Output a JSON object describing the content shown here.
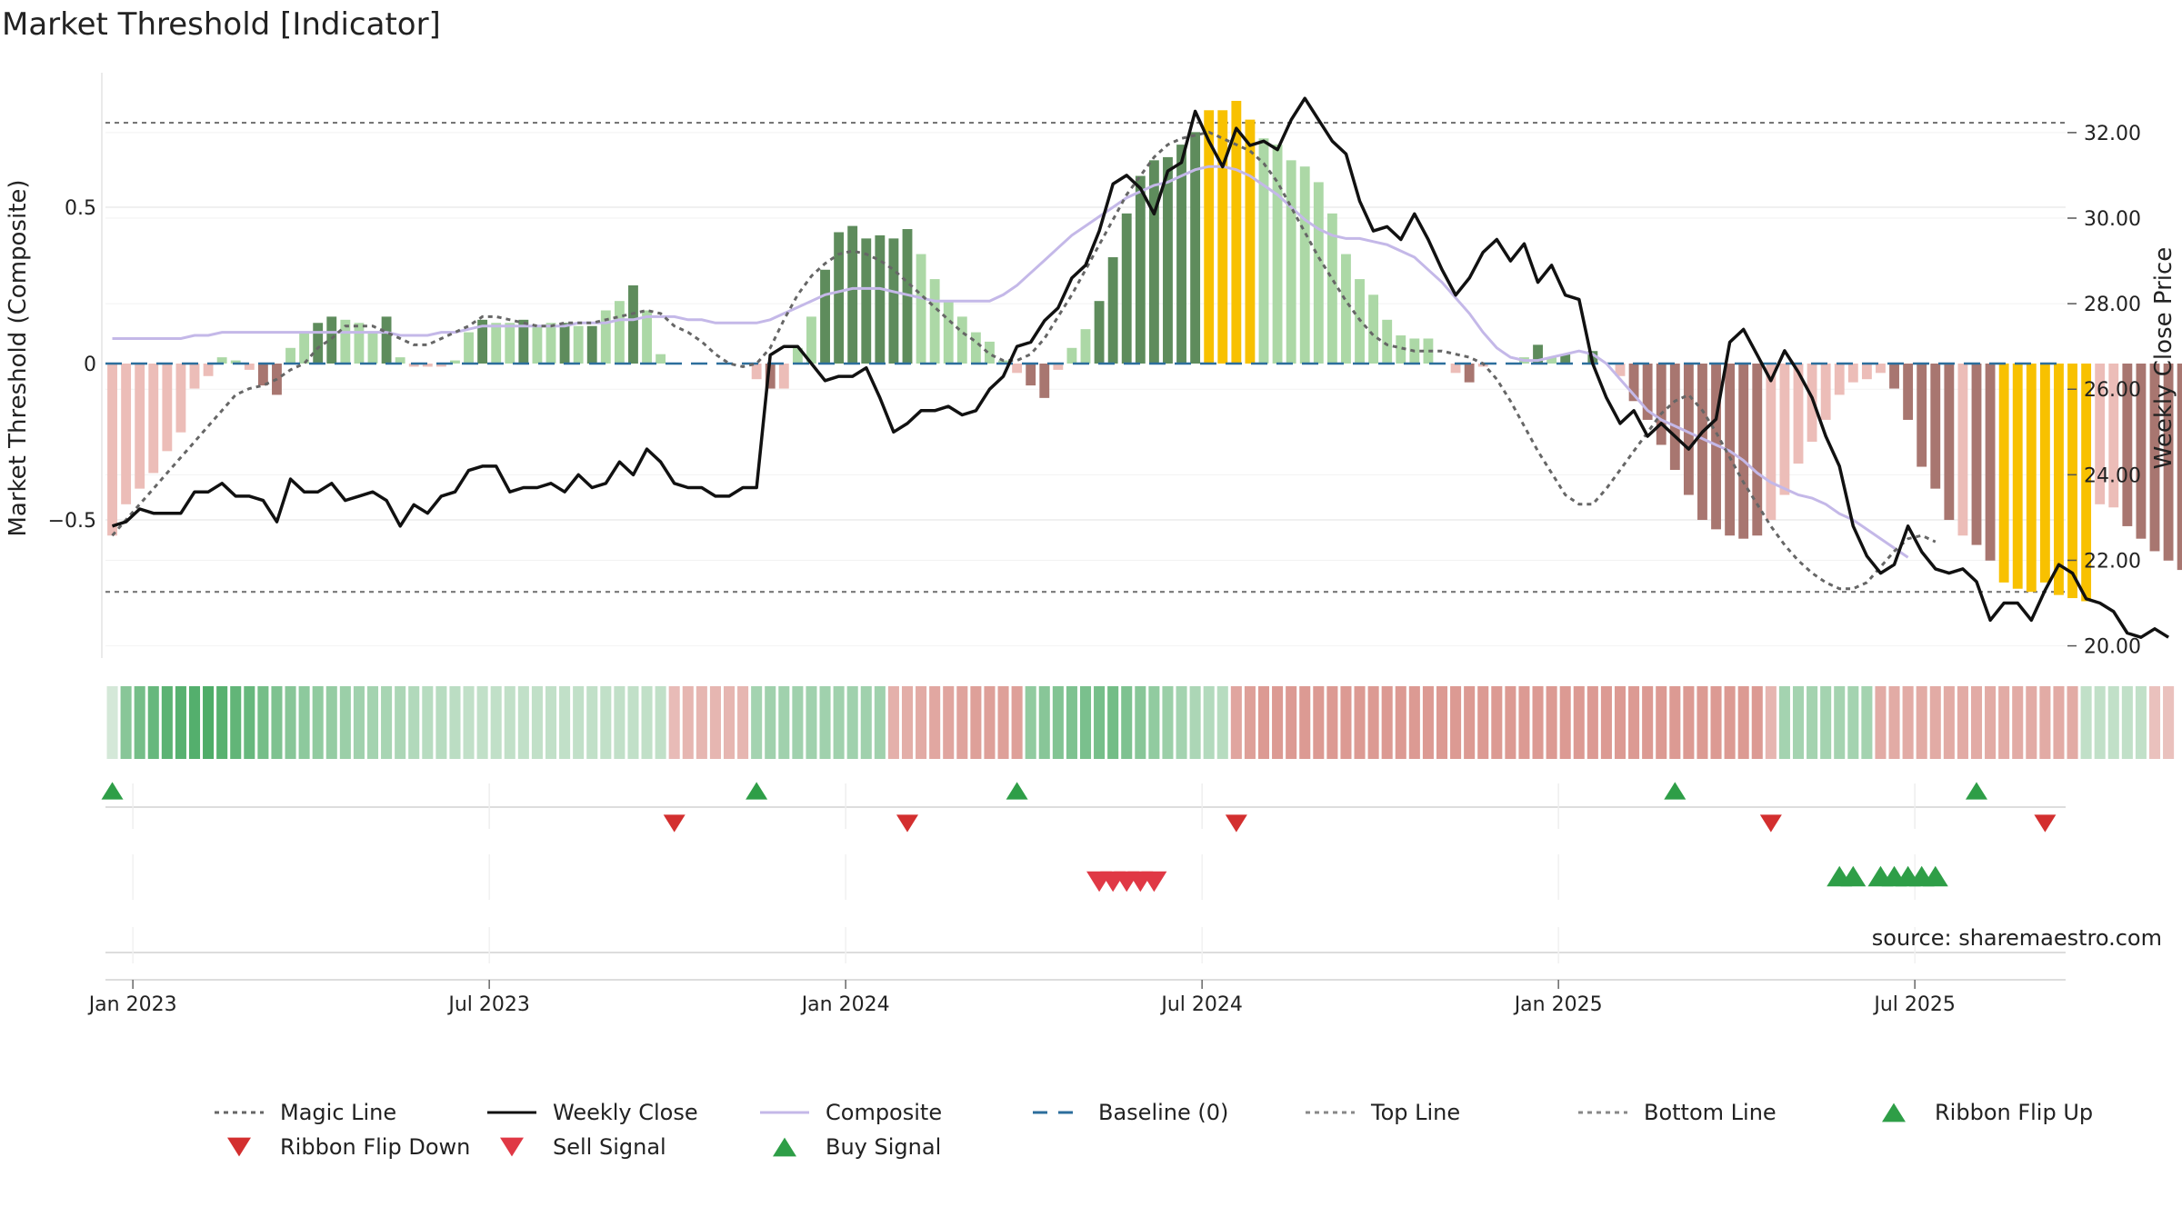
{
  "chart_data": {
    "type": "bar",
    "title": "Market Threshold [Indicator]",
    "ylabel_left": "Market Threshold (Composite)",
    "ylabel_right": "Weekly Close Price",
    "source": "source: sharemaestro.com",
    "x_tick_labels": [
      "Jan 2023",
      "Jul 2023",
      "Jan 2024",
      "Jul 2024",
      "Jan 2025",
      "Jul 2025"
    ],
    "x_tick_weeks": [
      1.5,
      27.5,
      53.5,
      79.5,
      105.5,
      131.5
    ],
    "x_range_weeks": [
      -0.5,
      142.5
    ],
    "left_axis": {
      "ticks": [
        -0.5,
        0,
        0.5
      ],
      "tick_labels": [
        "−0.5",
        "0",
        "0.5"
      ],
      "ylim": [
        -0.93,
        0.93
      ]
    },
    "right_axis": {
      "ticks": [
        20,
        22,
        24,
        26,
        28,
        30,
        32
      ],
      "tick_labels": [
        "20.00",
        "22.00",
        "24.00",
        "26.00",
        "28.00",
        "30.00",
        "32.00"
      ],
      "ylim": [
        19.8,
        33.4
      ]
    },
    "top_line": 0.77,
    "bottom_line": -0.73,
    "baseline": 0,
    "legend_position": "bottom",
    "legend": [
      {
        "label": "Magic Line",
        "symbol": "dotted-line",
        "color": "#666666"
      },
      {
        "label": "Weekly Close",
        "symbol": "solid-line",
        "color": "#111111"
      },
      {
        "label": "Composite",
        "symbol": "solid-line",
        "color": "#c4b8e8"
      },
      {
        "label": "Baseline (0)",
        "symbol": "dashed-line",
        "color": "#2c6e9c"
      },
      {
        "label": "Top Line",
        "symbol": "dotted-line",
        "color": "#888888"
      },
      {
        "label": "Bottom Line",
        "symbol": "dotted-line",
        "color": "#888888"
      },
      {
        "label": "Ribbon Flip Up",
        "symbol": "triangle-up",
        "color": "#2e9e47"
      },
      {
        "label": "Ribbon Flip Down",
        "symbol": "triangle-down",
        "color": "#d32f2f"
      },
      {
        "label": "Sell Signal",
        "symbol": "triangle-down",
        "color": "#e03845"
      },
      {
        "label": "Buy Signal",
        "symbol": "triangle-up",
        "color": "#2e9e47"
      }
    ],
    "histogram_colors": {
      "pos_weak": "#acd8a6",
      "pos_strong": "#5e8c5c",
      "neg_weak": "#ecbdb8",
      "neg_strong": "#a87670",
      "extreme": "#f8c100"
    },
    "histogram": [
      [
        -0.55,
        "neg_weak"
      ],
      [
        -0.45,
        "neg_weak"
      ],
      [
        -0.4,
        "neg_weak"
      ],
      [
        -0.35,
        "neg_weak"
      ],
      [
        -0.28,
        "neg_weak"
      ],
      [
        -0.22,
        "neg_weak"
      ],
      [
        -0.08,
        "neg_weak"
      ],
      [
        -0.04,
        "neg_weak"
      ],
      [
        0.02,
        "pos_weak"
      ],
      [
        0.01,
        "pos_weak"
      ],
      [
        -0.02,
        "neg_weak"
      ],
      [
        -0.07,
        "neg_strong"
      ],
      [
        -0.1,
        "neg_strong"
      ],
      [
        0.05,
        "pos_weak"
      ],
      [
        0.1,
        "pos_weak"
      ],
      [
        0.13,
        "pos_strong"
      ],
      [
        0.15,
        "pos_strong"
      ],
      [
        0.14,
        "pos_weak"
      ],
      [
        0.13,
        "pos_weak"
      ],
      [
        0.1,
        "pos_weak"
      ],
      [
        0.15,
        "pos_strong"
      ],
      [
        0.02,
        "pos_weak"
      ],
      [
        -0.01,
        "neg_weak"
      ],
      [
        -0.01,
        "neg_weak"
      ],
      [
        -0.01,
        "neg_weak"
      ],
      [
        0.01,
        "pos_weak"
      ],
      [
        0.1,
        "pos_weak"
      ],
      [
        0.14,
        "pos_strong"
      ],
      [
        0.13,
        "pos_weak"
      ],
      [
        0.13,
        "pos_weak"
      ],
      [
        0.14,
        "pos_strong"
      ],
      [
        0.12,
        "pos_weak"
      ],
      [
        0.13,
        "pos_weak"
      ],
      [
        0.13,
        "pos_strong"
      ],
      [
        0.12,
        "pos_weak"
      ],
      [
        0.12,
        "pos_strong"
      ],
      [
        0.17,
        "pos_weak"
      ],
      [
        0.2,
        "pos_weak"
      ],
      [
        0.25,
        "pos_strong"
      ],
      [
        0.17,
        "pos_weak"
      ],
      [
        0.03,
        "pos_weak"
      ],
      [
        0.0,
        "pos_weak"
      ],
      [
        0.0,
        "pos_weak"
      ],
      [
        0.0,
        "pos_weak"
      ],
      [
        0.0,
        "pos_weak"
      ],
      [
        0.0,
        "pos_weak"
      ],
      [
        0.0,
        "pos_weak"
      ],
      [
        -0.05,
        "neg_weak"
      ],
      [
        -0.08,
        "neg_strong"
      ],
      [
        -0.08,
        "neg_weak"
      ],
      [
        0.05,
        "pos_weak"
      ],
      [
        0.15,
        "pos_weak"
      ],
      [
        0.3,
        "pos_strong"
      ],
      [
        0.42,
        "pos_strong"
      ],
      [
        0.44,
        "pos_strong"
      ],
      [
        0.4,
        "pos_strong"
      ],
      [
        0.41,
        "pos_strong"
      ],
      [
        0.4,
        "pos_strong"
      ],
      [
        0.43,
        "pos_strong"
      ],
      [
        0.35,
        "pos_weak"
      ],
      [
        0.27,
        "pos_weak"
      ],
      [
        0.2,
        "pos_weak"
      ],
      [
        0.15,
        "pos_weak"
      ],
      [
        0.1,
        "pos_weak"
      ],
      [
        0.07,
        "pos_weak"
      ],
      [
        0.01,
        "pos_weak"
      ],
      [
        -0.03,
        "neg_weak"
      ],
      [
        -0.07,
        "neg_strong"
      ],
      [
        -0.11,
        "neg_strong"
      ],
      [
        -0.02,
        "neg_weak"
      ],
      [
        0.05,
        "pos_weak"
      ],
      [
        0.11,
        "pos_weak"
      ],
      [
        0.2,
        "pos_strong"
      ],
      [
        0.34,
        "pos_strong"
      ],
      [
        0.48,
        "pos_strong"
      ],
      [
        0.6,
        "pos_strong"
      ],
      [
        0.65,
        "pos_strong"
      ],
      [
        0.66,
        "pos_strong"
      ],
      [
        0.7,
        "pos_strong"
      ],
      [
        0.74,
        "pos_strong"
      ],
      [
        0.81,
        "extreme"
      ],
      [
        0.81,
        "extreme"
      ],
      [
        0.84,
        "extreme"
      ],
      [
        0.78,
        "extreme"
      ],
      [
        0.72,
        "pos_weak"
      ],
      [
        0.7,
        "pos_weak"
      ],
      [
        0.65,
        "pos_weak"
      ],
      [
        0.63,
        "pos_weak"
      ],
      [
        0.58,
        "pos_weak"
      ],
      [
        0.48,
        "pos_weak"
      ],
      [
        0.35,
        "pos_weak"
      ],
      [
        0.27,
        "pos_weak"
      ],
      [
        0.22,
        "pos_weak"
      ],
      [
        0.14,
        "pos_weak"
      ],
      [
        0.09,
        "pos_weak"
      ],
      [
        0.08,
        "pos_weak"
      ],
      [
        0.08,
        "pos_weak"
      ],
      [
        0.0,
        "pos_weak"
      ],
      [
        -0.03,
        "neg_weak"
      ],
      [
        -0.06,
        "neg_strong"
      ],
      [
        -0.01,
        "neg_weak"
      ],
      [
        0.0,
        "pos_weak"
      ],
      [
        0.0,
        "pos_weak"
      ],
      [
        0.02,
        "pos_weak"
      ],
      [
        0.06,
        "pos_strong"
      ],
      [
        0.02,
        "pos_weak"
      ],
      [
        0.03,
        "pos_strong"
      ],
      [
        0.0,
        "pos_weak"
      ],
      [
        0.04,
        "pos_strong"
      ],
      [
        0.0,
        "pos_weak"
      ],
      [
        -0.04,
        "neg_weak"
      ],
      [
        -0.12,
        "neg_strong"
      ],
      [
        -0.18,
        "neg_strong"
      ],
      [
        -0.26,
        "neg_strong"
      ],
      [
        -0.34,
        "neg_strong"
      ],
      [
        -0.42,
        "neg_strong"
      ],
      [
        -0.5,
        "neg_strong"
      ],
      [
        -0.53,
        "neg_strong"
      ],
      [
        -0.55,
        "neg_strong"
      ],
      [
        -0.56,
        "neg_strong"
      ],
      [
        -0.55,
        "neg_strong"
      ],
      [
        -0.5,
        "neg_weak"
      ],
      [
        -0.42,
        "neg_weak"
      ],
      [
        -0.32,
        "neg_weak"
      ],
      [
        -0.25,
        "neg_weak"
      ],
      [
        -0.18,
        "neg_weak"
      ],
      [
        -0.1,
        "neg_weak"
      ],
      [
        -0.06,
        "neg_weak"
      ],
      [
        -0.05,
        "neg_weak"
      ],
      [
        -0.03,
        "neg_weak"
      ],
      [
        -0.08,
        "neg_strong"
      ],
      [
        -0.18,
        "neg_strong"
      ],
      [
        -0.33,
        "neg_strong"
      ],
      [
        -0.4,
        "neg_strong"
      ],
      [
        -0.5,
        "neg_strong"
      ],
      [
        -0.55,
        "neg_weak"
      ],
      [
        -0.58,
        "neg_strong"
      ],
      [
        -0.63,
        "neg_strong"
      ],
      [
        -0.7,
        "extreme"
      ],
      [
        -0.72,
        "extreme"
      ],
      [
        -0.73,
        "extreme"
      ],
      [
        -0.7,
        "extreme"
      ],
      [
        -0.74,
        "extreme"
      ],
      [
        -0.75,
        "extreme"
      ],
      [
        -0.76,
        "extreme"
      ],
      [
        -0.45,
        "neg_weak"
      ],
      [
        -0.46,
        "neg_weak"
      ],
      [
        -0.52,
        "neg_strong"
      ],
      [
        -0.56,
        "neg_strong"
      ],
      [
        -0.6,
        "neg_strong"
      ],
      [
        -0.63,
        "neg_strong"
      ],
      [
        -0.66,
        "neg_strong"
      ]
    ],
    "weekly_close": [
      22.8,
      22.9,
      23.2,
      23.1,
      23.1,
      23.1,
      23.6,
      23.6,
      23.8,
      23.5,
      23.5,
      23.4,
      22.9,
      23.9,
      23.6,
      23.6,
      23.8,
      23.4,
      23.5,
      23.6,
      23.4,
      22.8,
      23.3,
      23.1,
      23.5,
      23.6,
      24.1,
      24.2,
      24.2,
      23.6,
      23.7,
      23.7,
      23.8,
      23.6,
      24.0,
      23.7,
      23.8,
      24.3,
      24.0,
      24.6,
      24.3,
      23.8,
      23.7,
      23.7,
      23.5,
      23.5,
      23.7,
      23.7,
      26.8,
      27.0,
      27.0,
      26.6,
      26.2,
      26.3,
      26.3,
      26.5,
      25.8,
      25.0,
      25.2,
      25.5,
      25.5,
      25.6,
      25.4,
      25.5,
      26.0,
      26.3,
      27.0,
      27.1,
      27.6,
      27.9,
      28.6,
      28.9,
      29.7,
      30.8,
      31.0,
      30.7,
      30.1,
      31.1,
      31.3,
      32.5,
      31.8,
      31.2,
      32.1,
      31.7,
      31.8,
      31.6,
      32.3,
      32.8,
      32.3,
      31.8,
      31.5,
      30.4,
      29.7,
      29.8,
      29.5,
      30.1,
      29.5,
      28.8,
      28.2,
      28.6,
      29.2,
      29.5,
      29.0,
      29.4,
      28.5,
      28.9,
      28.2,
      28.1,
      26.6,
      25.8,
      25.2,
      25.5,
      24.9,
      25.2,
      24.9,
      24.6,
      25.0,
      25.3,
      27.1,
      27.4,
      26.8,
      26.2,
      26.9,
      26.4,
      25.8,
      24.9,
      24.2,
      22.8,
      22.1,
      21.7,
      21.9,
      22.8,
      22.2,
      21.8,
      21.7,
      21.8,
      21.5,
      20.6,
      21.0,
      21.0,
      20.6,
      21.3,
      21.9,
      21.7,
      21.1,
      21.0,
      20.8,
      20.3,
      20.2,
      20.4,
      20.2
    ],
    "magic_line": [
      -0.55,
      -0.5,
      -0.45,
      -0.4,
      -0.35,
      -0.3,
      -0.25,
      -0.2,
      -0.15,
      -0.1,
      -0.08,
      -0.07,
      -0.05,
      -0.02,
      0.0,
      0.05,
      0.08,
      0.12,
      0.12,
      0.12,
      0.1,
      0.08,
      0.06,
      0.06,
      0.08,
      0.1,
      0.12,
      0.15,
      0.15,
      0.14,
      0.13,
      0.12,
      0.12,
      0.13,
      0.13,
      0.13,
      0.14,
      0.15,
      0.16,
      0.17,
      0.16,
      0.12,
      0.1,
      0.07,
      0.03,
      0.0,
      -0.01,
      0.0,
      0.05,
      0.14,
      0.22,
      0.28,
      0.32,
      0.35,
      0.36,
      0.35,
      0.33,
      0.3,
      0.26,
      0.22,
      0.18,
      0.14,
      0.1,
      0.07,
      0.03,
      0.01,
      0.01,
      0.03,
      0.08,
      0.15,
      0.22,
      0.3,
      0.38,
      0.46,
      0.54,
      0.6,
      0.66,
      0.7,
      0.72,
      0.73,
      0.74,
      0.72,
      0.7,
      0.68,
      0.64,
      0.58,
      0.5,
      0.42,
      0.34,
      0.27,
      0.2,
      0.14,
      0.09,
      0.06,
      0.05,
      0.04,
      0.04,
      0.04,
      0.03,
      0.02,
      0.0,
      -0.05,
      -0.12,
      -0.2,
      -0.28,
      -0.35,
      -0.42,
      -0.45,
      -0.45,
      -0.4,
      -0.34,
      -0.28,
      -0.22,
      -0.16,
      -0.12,
      -0.1,
      -0.15,
      -0.22,
      -0.3,
      -0.38,
      -0.45,
      -0.52,
      -0.58,
      -0.63,
      -0.67,
      -0.7,
      -0.72,
      -0.72,
      -0.7,
      -0.65,
      -0.6,
      -0.56,
      -0.55,
      -0.57
    ],
    "composite": [
      0.08,
      0.08,
      0.08,
      0.08,
      0.08,
      0.08,
      0.09,
      0.09,
      0.1,
      0.1,
      0.1,
      0.1,
      0.1,
      0.1,
      0.1,
      0.1,
      0.1,
      0.1,
      0.1,
      0.1,
      0.1,
      0.09,
      0.09,
      0.09,
      0.1,
      0.1,
      0.11,
      0.12,
      0.12,
      0.12,
      0.12,
      0.12,
      0.12,
      0.12,
      0.13,
      0.13,
      0.13,
      0.14,
      0.14,
      0.15,
      0.15,
      0.15,
      0.14,
      0.14,
      0.13,
      0.13,
      0.13,
      0.13,
      0.14,
      0.16,
      0.18,
      0.2,
      0.22,
      0.23,
      0.24,
      0.24,
      0.24,
      0.23,
      0.22,
      0.21,
      0.2,
      0.2,
      0.2,
      0.2,
      0.2,
      0.22,
      0.25,
      0.29,
      0.33,
      0.37,
      0.41,
      0.44,
      0.47,
      0.5,
      0.53,
      0.55,
      0.57,
      0.58,
      0.6,
      0.62,
      0.63,
      0.63,
      0.62,
      0.6,
      0.57,
      0.54,
      0.5,
      0.46,
      0.43,
      0.41,
      0.4,
      0.4,
      0.39,
      0.38,
      0.36,
      0.34,
      0.3,
      0.26,
      0.21,
      0.16,
      0.1,
      0.05,
      0.02,
      0.01,
      0.01,
      0.02,
      0.03,
      0.04,
      0.03,
      0.0,
      -0.05,
      -0.1,
      -0.15,
      -0.18,
      -0.2,
      -0.22,
      -0.24,
      -0.26,
      -0.28,
      -0.31,
      -0.35,
      -0.38,
      -0.4,
      -0.42,
      -0.43,
      -0.45,
      -0.48,
      -0.5,
      -0.53,
      -0.56,
      -0.59,
      -0.62
    ],
    "ribbon": [
      0.15,
      0.55,
      0.65,
      0.72,
      0.78,
      0.8,
      0.82,
      0.85,
      0.8,
      0.75,
      0.72,
      0.65,
      0.6,
      0.55,
      0.52,
      0.5,
      0.48,
      0.45,
      0.42,
      0.4,
      0.38,
      0.36,
      0.33,
      0.3,
      0.3,
      0.28,
      0.25,
      0.25,
      0.25,
      0.25,
      0.25,
      0.25,
      0.25,
      0.25,
      0.25,
      0.25,
      0.25,
      0.25,
      0.25,
      0.25,
      0.25,
      -0.3,
      -0.35,
      -0.35,
      -0.35,
      -0.35,
      -0.35,
      0.4,
      0.42,
      0.42,
      0.42,
      0.42,
      0.42,
      0.42,
      0.42,
      0.42,
      0.42,
      -0.4,
      -0.42,
      -0.45,
      -0.48,
      -0.5,
      -0.52,
      -0.55,
      -0.55,
      -0.55,
      -0.55,
      0.5,
      0.55,
      0.58,
      0.6,
      0.62,
      0.64,
      0.66,
      0.6,
      0.55,
      0.5,
      0.45,
      0.4,
      0.36,
      0.32,
      0.3,
      -0.5,
      -0.55,
      -0.6,
      -0.6,
      -0.6,
      -0.6,
      -0.6,
      -0.6,
      -0.6,
      -0.6,
      -0.6,
      -0.6,
      -0.6,
      -0.6,
      -0.6,
      -0.6,
      -0.6,
      -0.6,
      -0.6,
      -0.6,
      -0.6,
      -0.6,
      -0.6,
      -0.6,
      -0.6,
      -0.6,
      -0.6,
      -0.6,
      -0.6,
      -0.6,
      -0.6,
      -0.6,
      -0.6,
      -0.6,
      -0.6,
      -0.6,
      -0.6,
      -0.6,
      -0.6,
      -0.35,
      0.4,
      0.4,
      0.4,
      0.4,
      0.4,
      0.4,
      0.4,
      -0.45,
      -0.45,
      -0.45,
      -0.45,
      -0.45,
      -0.45,
      -0.45,
      -0.45,
      -0.45,
      -0.45,
      -0.45,
      -0.45,
      -0.45,
      -0.45,
      -0.45,
      0.25,
      0.25,
      0.25,
      0.25,
      0.25,
      -0.25,
      -0.25
    ],
    "ribbon_flip_up_weeks": [
      0,
      47,
      66,
      114,
      136
    ],
    "ribbon_flip_down_weeks": [
      41,
      58,
      82,
      121,
      141
    ],
    "sell_signal_weeks": [
      72,
      73,
      74,
      75,
      76
    ],
    "buy_signal_weeks": [
      126,
      127,
      129,
      130,
      131,
      132,
      133
    ]
  }
}
